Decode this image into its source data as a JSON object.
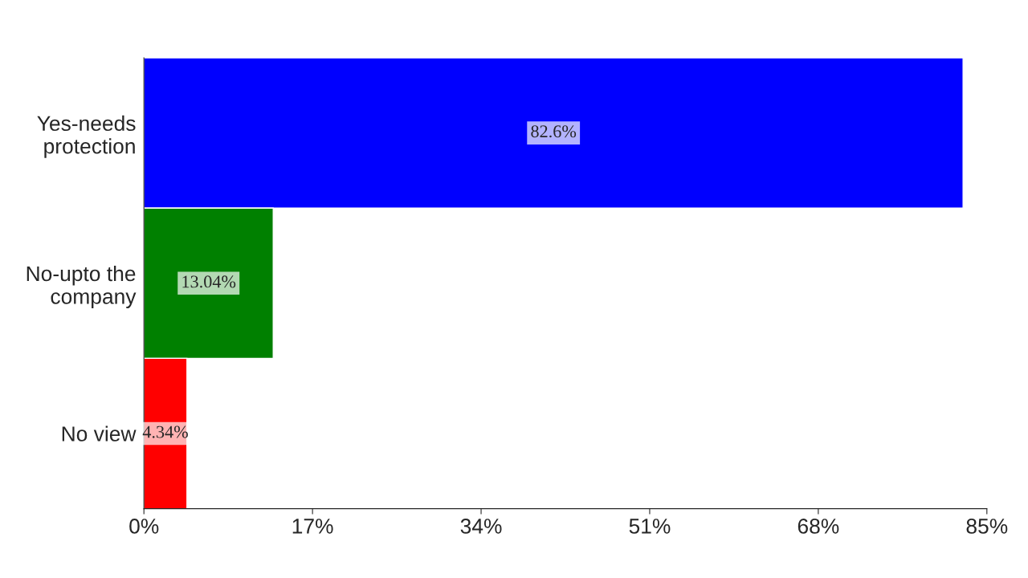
{
  "chart_data": {
    "type": "bar",
    "orientation": "horizontal",
    "categories": [
      "Yes-needs\nprotection",
      "No-upto the\ncompany",
      "No view"
    ],
    "values": [
      82.6,
      13.04,
      4.34
    ],
    "colors": [
      "#0000ff",
      "#008000",
      "#ff0000"
    ],
    "value_labels": [
      "82.6%",
      "13.04%",
      "4.34%"
    ],
    "xlim": [
      0,
      85
    ],
    "xticks": [
      {
        "value": 0,
        "label": "0%"
      },
      {
        "value": 17,
        "label": "17%"
      },
      {
        "value": 34,
        "label": "34%"
      },
      {
        "value": 51,
        "label": "51%"
      },
      {
        "value": 68,
        "label": "68%"
      },
      {
        "value": 85,
        "label": "85%"
      }
    ],
    "grid": false
  }
}
